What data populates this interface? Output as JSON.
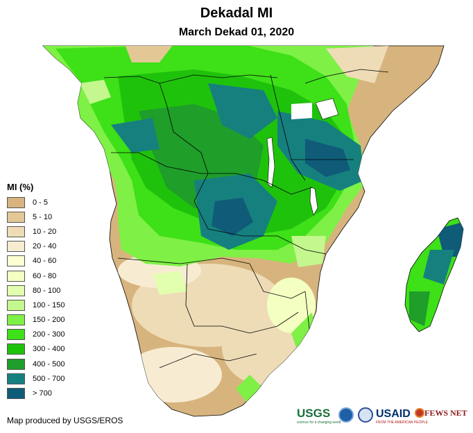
{
  "title": "Dekadal MI",
  "subtitle": "March Dekad 01, 2020",
  "legend": {
    "title": "MI (%)",
    "items": [
      {
        "label": "0 - 5",
        "color": "#d7b47e"
      },
      {
        "label": "5 - 10",
        "color": "#e3c896"
      },
      {
        "label": "10 - 20",
        "color": "#eedcb7"
      },
      {
        "label": "20 - 40",
        "color": "#f7ecd2"
      },
      {
        "label": "40 - 60",
        "color": "#ffffd4"
      },
      {
        "label": "60 - 80",
        "color": "#f4ffc2"
      },
      {
        "label": "80 - 100",
        "color": "#e2ffb0"
      },
      {
        "label": "100 - 150",
        "color": "#c4f78e"
      },
      {
        "label": "150 - 200",
        "color": "#7ff046"
      },
      {
        "label": "200 - 300",
        "color": "#3ee018"
      },
      {
        "label": "300 - 400",
        "color": "#1fc20b"
      },
      {
        "label": "400 - 500",
        "color": "#1f9e2a"
      },
      {
        "label": "500 - 700",
        "color": "#16807f"
      },
      {
        "label": "> 700",
        "color": "#0f5b78"
      }
    ]
  },
  "credit": "Map produced by USGS/EROS",
  "logos": {
    "usgs": "USGS",
    "usgs_tagline": "science for a changing world",
    "usaid": "USAID",
    "usaid_tagline": "FROM THE AMERICAN PEOPLE",
    "fews": "FEWS NET"
  }
}
